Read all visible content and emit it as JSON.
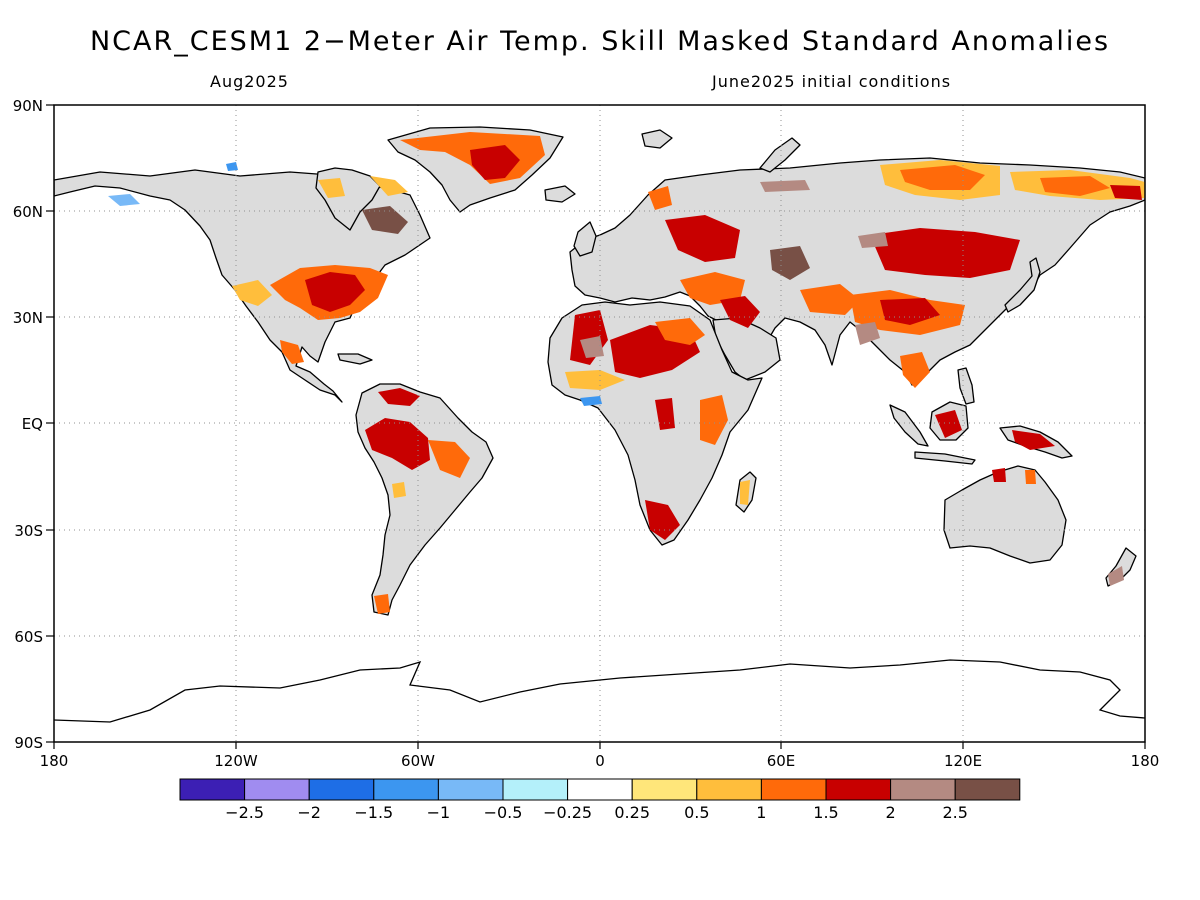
{
  "header": {
    "title": "NCAR_CESM1 2−Meter Air Temp. Skill Masked Standard Anomalies",
    "target_month": "Aug2025",
    "initial_conditions": "June2025 initial conditions"
  },
  "map": {
    "lat_labels": [
      "90N",
      "60N",
      "30N",
      "EQ",
      "30S",
      "60S",
      "90S"
    ],
    "lon_labels": [
      "180",
      "120W",
      "60W",
      "0",
      "60E",
      "120E",
      "180"
    ],
    "land_color": "#dcdcdc",
    "grid_style": "dotted"
  },
  "colorbar": {
    "colors": [
      "#3c1fb4",
      "#a08cf0",
      "#1e6ee6",
      "#3c96f0",
      "#78b9f7",
      "#b4f0fa",
      "#ffffff",
      "#ffe67a",
      "#ffbe3c",
      "#ff6a0a",
      "#c80000",
      "#b48a82",
      "#785046"
    ],
    "labels": [
      "−2.5",
      "−2",
      "−1.5",
      "−1",
      "−0.5",
      "−0.25",
      "0.25",
      "0.5",
      "1",
      "1.5",
      "2",
      "2.5"
    ]
  },
  "anomaly_palette": {
    "yellow": "#ffe67a",
    "orange": "#ffbe3c",
    "dark_orange": "#ff6a0a",
    "red": "#c80000",
    "brown_light": "#b48a82",
    "brown_dark": "#785046",
    "light_blue": "#78b9f7",
    "blue": "#3c96f0"
  }
}
